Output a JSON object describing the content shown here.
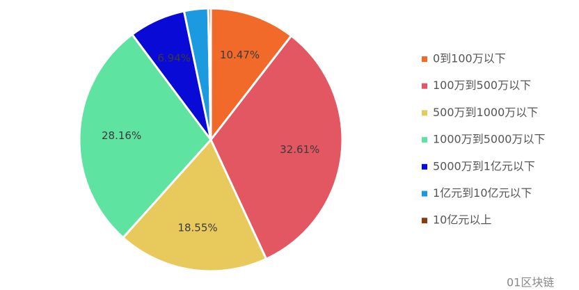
{
  "chart_data": {
    "type": "pie",
    "categories": [
      "0到100万以下",
      "100万到500万以下",
      "500万到1000万以下",
      "1000万到5000万以下",
      "5000万到1亿元以下",
      "1亿元到10亿元以下",
      "10亿元以上"
    ],
    "values": [
      10.47,
      32.61,
      18.55,
      28.16,
      6.94,
      2.95,
      0.32
    ],
    "value_labels": [
      "10.47%",
      "32.61%",
      "18.55%",
      "28.16%",
      "6.94%",
      null,
      null
    ],
    "colors": [
      "#f26a2a",
      "#e35762",
      "#e8c95c",
      "#5fe3a1",
      "#0a0ad6",
      "#1c9ae0",
      "#8a3a0c"
    ],
    "legend": "right"
  },
  "watermark": "01区块链"
}
